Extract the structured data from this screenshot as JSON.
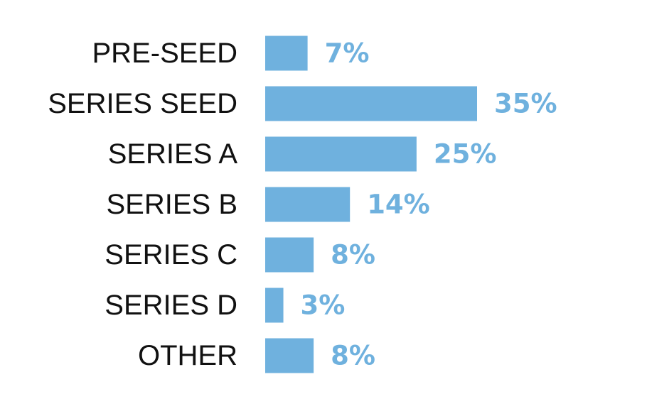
{
  "chart_data": {
    "type": "bar",
    "orientation": "horizontal",
    "categories": [
      "PRE-SEED",
      "SERIES SEED",
      "SERIES A",
      "SERIES B",
      "SERIES C",
      "SERIES D",
      "OTHER"
    ],
    "values": [
      7,
      35,
      25,
      14,
      8,
      3,
      8
    ],
    "value_labels": [
      "7%",
      "35%",
      "25%",
      "14%",
      "8%",
      "3%",
      "8%"
    ],
    "xlim": [
      0,
      35
    ],
    "grid": false,
    "bar_color": "#6fb1de",
    "label_color": "#6fb1de"
  }
}
